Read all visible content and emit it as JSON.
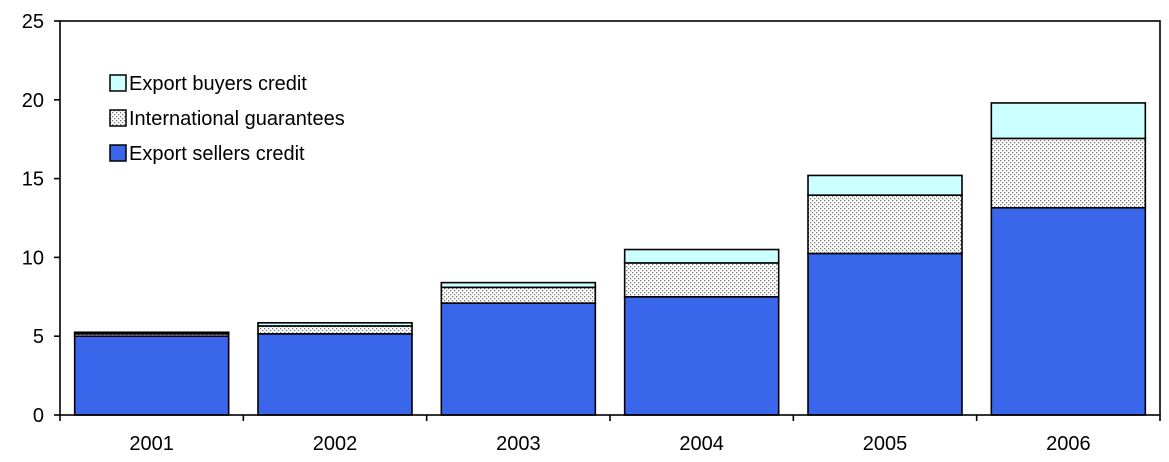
{
  "chart_data": {
    "type": "bar",
    "stacked": true,
    "categories": [
      "2001",
      "2002",
      "2003",
      "2004",
      "2005",
      "2006"
    ],
    "series": [
      {
        "name": "Export sellers credit",
        "values": [
          5.0,
          5.15,
          7.1,
          7.5,
          10.25,
          13.15
        ],
        "color": "#3A66EC",
        "pattern": "solid"
      },
      {
        "name": "International guarantees",
        "values": [
          0.15,
          0.5,
          1.0,
          2.15,
          3.7,
          4.4
        ],
        "color": "#d8d8d8",
        "pattern": "dotted"
      },
      {
        "name": "Export buyers credit",
        "values": [
          0.1,
          0.2,
          0.3,
          0.85,
          1.25,
          2.25
        ],
        "color": "#CCFFFF",
        "pattern": "solid"
      }
    ],
    "legend_order": [
      "Export buyers credit",
      "International guarantees",
      "Export sellers credit"
    ],
    "ylim": [
      0,
      25
    ],
    "yticks": [
      "0",
      "5",
      "10",
      "15",
      "20",
      "25"
    ],
    "legend_position": "top-left, inside plot",
    "grid": false
  }
}
